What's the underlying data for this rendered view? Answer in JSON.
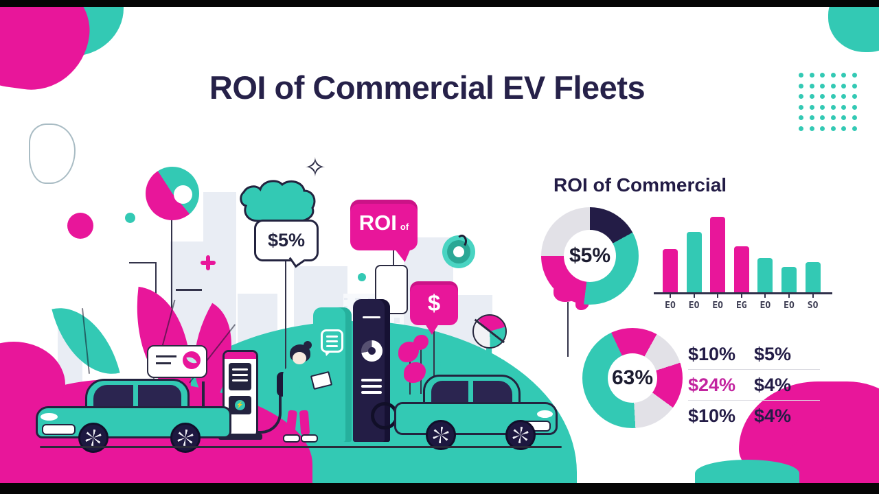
{
  "title": "ROI of Commercial EV Fleets",
  "colors": {
    "pink": "#e8169a",
    "teal": "#33c9b4",
    "navy": "#231c46",
    "gray": "#e2e1e7"
  },
  "icons": {
    "sparkle": "✧",
    "bolt": "⚡"
  },
  "illustration": {
    "cloud_bubble_label": "$5%",
    "roi_bubble_main": "ROI",
    "roi_bubble_suffix": "of",
    "dollar_bubble_label": "$"
  },
  "panel": {
    "heading": "ROI of Commercial"
  },
  "decor": {
    "dots_grid": {
      "rows": 6,
      "cols": 6
    }
  },
  "chart_data": [
    {
      "type": "pie",
      "donut": true,
      "title": "ROI of Commercial",
      "center_label": "$5%",
      "start_deg": 0,
      "slices": [
        {
          "label": "navy-segment",
          "value": 17,
          "color": "#231c46"
        },
        {
          "label": "teal-segment",
          "value": 35,
          "color": "#33c9b4"
        },
        {
          "label": "pink-segment",
          "value": 23,
          "color": "#e8169a"
        },
        {
          "label": "gray-segment",
          "value": 25,
          "color": "#e2e1e7"
        }
      ]
    },
    {
      "type": "bar",
      "title": "",
      "xlabel": "",
      "ylabel": "",
      "categories": [
        "EO",
        "EO",
        "EO",
        "EG",
        "EO",
        "EO",
        "SO"
      ],
      "values": [
        63,
        88,
        110,
        67,
        50,
        37,
        44
      ],
      "bar_colors": [
        "#e8169a",
        "#33c9b4",
        "#e8169a",
        "#e8169a",
        "#33c9b4",
        "#33c9b4",
        "#33c9b4"
      ],
      "ylim": [
        0,
        120
      ],
      "grid": false,
      "legend": "none"
    },
    {
      "type": "pie",
      "donut": true,
      "center_label": "63%",
      "start_deg": -25,
      "slices": [
        {
          "label": "pink-segment-a",
          "value": 15,
          "color": "#e8169a"
        },
        {
          "label": "gray-segment-a",
          "value": 12,
          "color": "#e2e1e7"
        },
        {
          "label": "pink-segment-b",
          "value": 15,
          "color": "#e8169a"
        },
        {
          "label": "gray-segment-b",
          "value": 14,
          "color": "#e2e1e7"
        },
        {
          "label": "teal-segment",
          "value": 44,
          "color": "#33c9b4"
        }
      ]
    },
    {
      "type": "table",
      "rows": [
        [
          "$10%",
          "$5%"
        ],
        [
          "$24%",
          "$4%"
        ],
        [
          "$10%",
          "$4%"
        ]
      ],
      "highlight_cells": [
        [
          1,
          0
        ]
      ],
      "highlight_color": "#c2249f"
    }
  ]
}
